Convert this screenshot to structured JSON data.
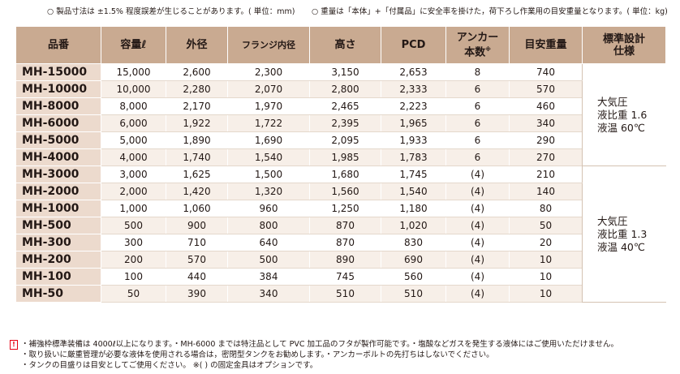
{
  "top_notes": {
    "left": "○ 製品寸法は ±1.5% 程度誤差が生じることがあります。( 単位：mm)",
    "right": "○ 重量は「本体」+「付属品」に安全率を掛けた，荷下ろし作業用の目安重量となります。( 単位：kg)"
  },
  "headers": {
    "model": "品番",
    "capacity": "容量ℓ",
    "outer_diameter": "外径",
    "flange_inner": "フランジ内径",
    "height": "高さ",
    "pcd": "PCD",
    "anchor_1": "アンカー",
    "anchor_2": "本数",
    "anchor_mark": "※",
    "weight": "目安重量",
    "spec_1": "標準設計",
    "spec_2": "仕様"
  },
  "rows": [
    {
      "model": "MH-15000",
      "capacity": "15,000",
      "od": "2,600",
      "flange": "2,300",
      "height": "3,150",
      "pcd": "2,653",
      "anchors": "8",
      "weight": "740"
    },
    {
      "model": "MH-10000",
      "capacity": "10,000",
      "od": "2,280",
      "flange": "2,070",
      "height": "2,800",
      "pcd": "2,333",
      "anchors": "6",
      "weight": "570"
    },
    {
      "model": "MH-8000",
      "capacity": "8,000",
      "od": "2,170",
      "flange": "1,970",
      "height": "2,465",
      "pcd": "2,223",
      "anchors": "6",
      "weight": "460"
    },
    {
      "model": "MH-6000",
      "capacity": "6,000",
      "od": "1,922",
      "flange": "1,722",
      "height": "2,395",
      "pcd": "1,965",
      "anchors": "6",
      "weight": "340"
    },
    {
      "model": "MH-5000",
      "capacity": "5,000",
      "od": "1,890",
      "flange": "1,690",
      "height": "2,095",
      "pcd": "1,933",
      "anchors": "6",
      "weight": "290"
    },
    {
      "model": "MH-4000",
      "capacity": "4,000",
      "od": "1,740",
      "flange": "1,540",
      "height": "1,985",
      "pcd": "1,783",
      "anchors": "6",
      "weight": "270"
    },
    {
      "model": "MH-3000",
      "capacity": "3,000",
      "od": "1,625",
      "flange": "1,500",
      "height": "1,680",
      "pcd": "1,745",
      "anchors": "(4)",
      "weight": "210"
    },
    {
      "model": "MH-2000",
      "capacity": "2,000",
      "od": "1,420",
      "flange": "1,320",
      "height": "1,560",
      "pcd": "1,540",
      "anchors": "(4)",
      "weight": "140"
    },
    {
      "model": "MH-1000",
      "capacity": "1,000",
      "od": "1,060",
      "flange": "960",
      "height": "1,250",
      "pcd": "1,180",
      "anchors": "(4)",
      "weight": "80"
    },
    {
      "model": "MH-500",
      "capacity": "500",
      "od": "900",
      "flange": "800",
      "height": "870",
      "pcd": "1,020",
      "anchors": "(4)",
      "weight": "50"
    },
    {
      "model": "MH-300",
      "capacity": "300",
      "od": "710",
      "flange": "640",
      "height": "870",
      "pcd": "830",
      "anchors": "(4)",
      "weight": "20"
    },
    {
      "model": "MH-200",
      "capacity": "200",
      "od": "570",
      "flange": "500",
      "height": "890",
      "pcd": "690",
      "anchors": "(4)",
      "weight": "10"
    },
    {
      "model": "MH-100",
      "capacity": "100",
      "od": "440",
      "flange": "384",
      "height": "745",
      "pcd": "560",
      "anchors": "(4)",
      "weight": "10"
    },
    {
      "model": "MH-50",
      "capacity": "50",
      "od": "390",
      "flange": "340",
      "height": "510",
      "pcd": "510",
      "anchors": "(4)",
      "weight": "10"
    }
  ],
  "design_spec": {
    "group1": {
      "line1": "大気圧",
      "line2": "液比重 1.6",
      "line3": "液温 60℃"
    },
    "group2": {
      "line1": "大気圧",
      "line2": "液比重 1.3",
      "line3": "液温 40℃"
    }
  },
  "bottom_notes": {
    "icon_text": "!",
    "line1": "・補強枠標準装備は 4000ℓ以上になります。・MH-6000 までは特注品として PVC 加工品のフタが製作可能です。・塩酸などガスを発生する液体にはご使用いただけません。",
    "line2": "・取り扱いに厳重管理が必要な液体を使用される場合は，密閉型タンクをお勧めします。・アンカーボルトの先打ちはしないでください。",
    "line3": "・タンクの目盛りは目安としてご使用ください。 ※( ) の固定金具はオプションです。"
  },
  "colors": {
    "header_bg": "#c9aa91",
    "model_bg": "#ecdacd",
    "stripe_bg": "#f7efe8",
    "warning": "#e60012"
  }
}
